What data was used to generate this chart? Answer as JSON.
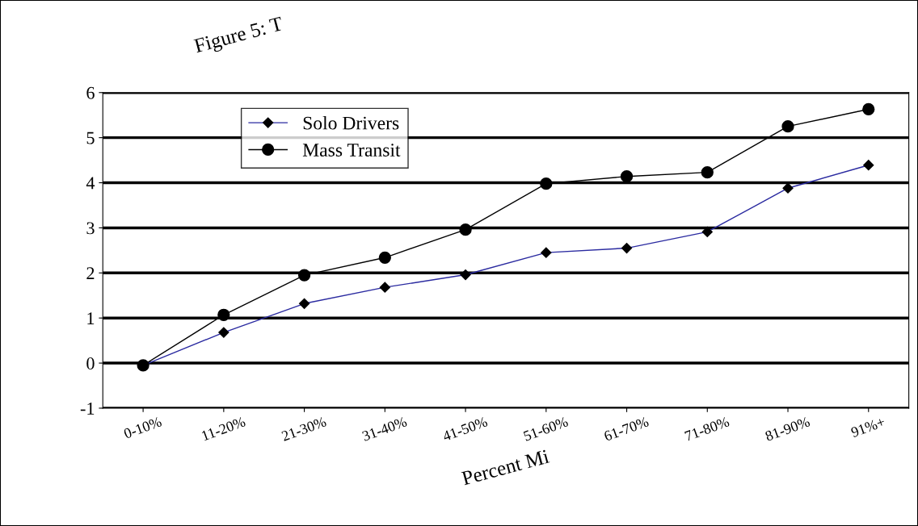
{
  "chart_data": {
    "type": "line",
    "title": "Figure 5: T",
    "xlabel": "Percent Mi",
    "categories": [
      "0-10%",
      "11-20%",
      "21-30%",
      "31-40%",
      "41-50%",
      "51-60%",
      "61-70%",
      "71-80%",
      "81-90%",
      "91%+"
    ],
    "series": [
      {
        "name": "Solo Drivers",
        "color": "#2a2aa0",
        "marker": "diamond",
        "values": [
          -0.05,
          0.68,
          1.32,
          1.68,
          1.96,
          2.45,
          2.55,
          2.91,
          3.88,
          4.39
        ]
      },
      {
        "name": "Mass Transit",
        "color": "#000000",
        "marker": "circle",
        "values": [
          -0.05,
          1.07,
          1.95,
          2.34,
          2.96,
          3.98,
          4.14,
          4.23,
          5.25,
          5.63
        ]
      }
    ],
    "ylim": [
      -1,
      6
    ],
    "yticks": [
      -1,
      0,
      1,
      2,
      3,
      4,
      5,
      6
    ],
    "grid": "y",
    "legend": "top left"
  }
}
